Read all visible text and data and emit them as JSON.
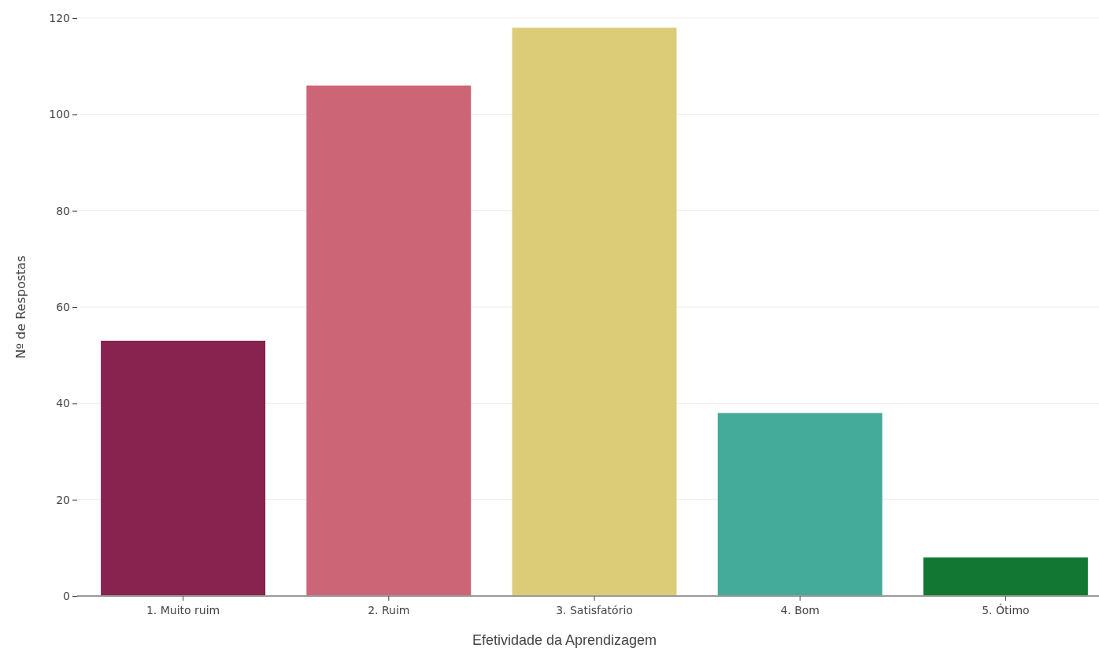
{
  "chart_data": {
    "type": "bar",
    "xlabel": "Efetividade da Aprendizagem",
    "ylabel": "Nº de Respostas",
    "categories": [
      "1. Muito ruim",
      "2. Ruim",
      "3. Satisfatório",
      "4. Bom",
      "5. Ótimo"
    ],
    "values": [
      53,
      106,
      118,
      38,
      8
    ],
    "colors": [
      "#88224f",
      "#cc6677",
      "#ddcc77",
      "#44aa99",
      "#117733"
    ],
    "ylim": [
      0,
      120
    ],
    "yticks": [
      0,
      20,
      40,
      60,
      80,
      100,
      120
    ],
    "grid": "y"
  }
}
